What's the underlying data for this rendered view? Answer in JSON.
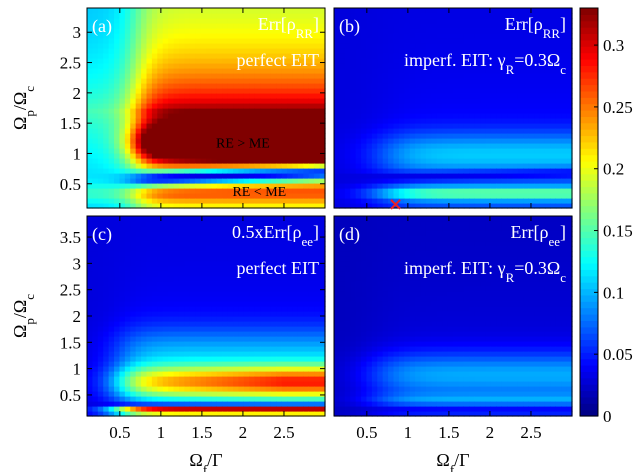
{
  "chart_data": {
    "type": "heatmap",
    "colormap": "jet",
    "colorbar": {
      "range": [
        0,
        0.33
      ],
      "ticks": [
        "0",
        "0.05",
        "0.1",
        "0.15",
        "0.2",
        "0.25",
        "0.3"
      ],
      "tick_values": [
        0,
        0.05,
        0.1,
        0.15,
        0.2,
        0.25,
        0.3
      ]
    },
    "xlabel": {
      "main": "Ω",
      "sub": "f",
      "tail": "/Γ"
    },
    "ylabel": {
      "main": "Ω",
      "sub1": "p",
      "mid": "/Ω",
      "sub2": "c"
    },
    "x_ticks": [
      "0.5",
      "1",
      "1.5",
      "2",
      "2.5"
    ],
    "x_tick_values": [
      0.5,
      1,
      1.5,
      2,
      2.5
    ],
    "xlim": [
      0.1,
      3.0
    ],
    "panels": [
      {
        "id": "a",
        "label": "(a)",
        "title": {
          "main": "Err[ρ",
          "sub": "RR",
          "tail": "]"
        },
        "subtitle": {
          "main": "perfect EIT",
          "sub": "",
          "tail": ""
        },
        "ylim": [
          0.1,
          3.4
        ],
        "y_ticks": [
          "0.5",
          "1",
          "1.5",
          "2",
          "2.5",
          "3"
        ],
        "y_tick_values": [
          0.5,
          1,
          1.5,
          2,
          2.5,
          3
        ],
        "annotations": [
          {
            "text": "RE > ME",
            "x": 2.0,
            "y": 1.18
          },
          {
            "text": "RE < ME",
            "x": 2.2,
            "y": 0.38
          }
        ],
        "marker": null
      },
      {
        "id": "b",
        "label": "(b)",
        "title": {
          "main": "Err[ρ",
          "sub": "RR",
          "tail": "]"
        },
        "subtitle": {
          "main": "imperf. EIT: γ",
          "sub": "R",
          "tail": "=0.3Ω",
          "sub2": "c"
        },
        "ylim": [
          0.1,
          3.4
        ],
        "y_ticks": [],
        "y_tick_values": [],
        "annotations": [],
        "marker": {
          "symbol": "×",
          "x": 0.85,
          "y": 0.17,
          "color": "#e8202a"
        }
      },
      {
        "id": "c",
        "label": "(c)",
        "title": {
          "main": "0.5xErr[ρ",
          "sub": "ee",
          "tail": "]"
        },
        "subtitle": {
          "main": "perfect EIT",
          "sub": "",
          "tail": ""
        },
        "ylim": [
          0.1,
          3.9
        ],
        "y_ticks": [
          "0.5",
          "1",
          "1.5",
          "2",
          "2.5",
          "3",
          "3.5"
        ],
        "y_tick_values": [
          0.5,
          1,
          1.5,
          2,
          2.5,
          3,
          3.5
        ],
        "annotations": [],
        "marker": null
      },
      {
        "id": "d",
        "label": "(d)",
        "title": {
          "main": "Err[ρ",
          "sub": "ee",
          "tail": "]"
        },
        "subtitle": {
          "main": "imperf. EIT: γ",
          "sub": "R",
          "tail": "=0.3Ω",
          "sub2": "c"
        },
        "ylim": [
          0.1,
          3.9
        ],
        "y_ticks": [],
        "y_tick_values": [],
        "annotations": [],
        "marker": null
      }
    ]
  }
}
